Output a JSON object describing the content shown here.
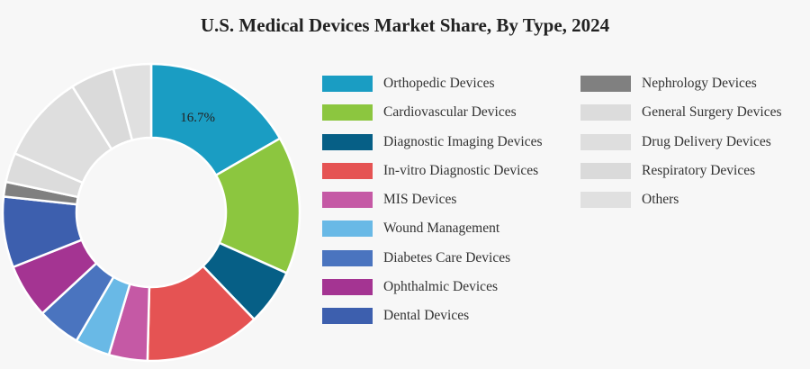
{
  "chart_data": {
    "type": "pie",
    "title": "U.S. Medical Devices Market Share, By Type, 2024",
    "donut": true,
    "data_labels": [
      {
        "category": "Orthopedic Devices",
        "text": "16.7%"
      }
    ],
    "legend_position": "right",
    "slices": [
      {
        "label": "Orthopedic Devices",
        "value": 16.7,
        "color": "#1a9dc3"
      },
      {
        "label": "Cardiovascular Devices",
        "value": 15.0,
        "color": "#8cc63f"
      },
      {
        "label": "Diagnostic Imaging Devices",
        "value": 6.1,
        "color": "#065f86"
      },
      {
        "label": "In-vitro Diagnostic Devices",
        "value": 12.6,
        "color": "#e55353"
      },
      {
        "label": "MIS Devices",
        "value": 4.2,
        "color": "#c559a5"
      },
      {
        "label": "Wound Management",
        "value": 3.8,
        "color": "#69b9e6"
      },
      {
        "label": "Diabetes Care Devices",
        "value": 4.7,
        "color": "#4a74bf"
      },
      {
        "label": "Ophthalmic Devices",
        "value": 5.9,
        "color": "#a43492"
      },
      {
        "label": "Dental Devices",
        "value": 7.7,
        "color": "#3d5fae"
      },
      {
        "label": "Nephrology Devices",
        "value": 1.6,
        "color": "#808080"
      },
      {
        "label": "General Surgery Devices",
        "value": 3.2,
        "color": "#dcdcdc"
      },
      {
        "label": "Drug Delivery Devices",
        "value": 9.6,
        "color": "#dedede"
      },
      {
        "label": "Respiratory Devices",
        "value": 4.8,
        "color": "#dadada"
      },
      {
        "label": "Others",
        "value": 4.1,
        "color": "#e0e0e0"
      }
    ]
  }
}
